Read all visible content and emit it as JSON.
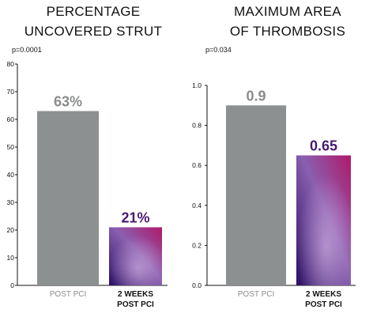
{
  "colors": {
    "gray_bar": "#8c9090",
    "gray_label": "#8a8c8c",
    "purple_label": "#4a1a6e",
    "gradient_dark": "#2a0f62",
    "gradient_mid": "#8a5fb0",
    "gradient_pink": "#b01a6a",
    "axis": "#111111"
  },
  "chart_data": [
    {
      "type": "bar",
      "title_lines": [
        "PERCENTAGE",
        "UNCOVERED STRUT"
      ],
      "p_value": "p=0.0001",
      "categories": [
        [
          "POST PCI"
        ],
        [
          "2 WEEKS",
          "POST PCI"
        ]
      ],
      "values": [
        63,
        21
      ],
      "value_labels": [
        "63%",
        "21%"
      ],
      "ylim": [
        0,
        80
      ],
      "yticks": [
        0,
        10,
        20,
        30,
        40,
        50,
        60,
        70,
        80
      ],
      "ytick_labels": [
        "0",
        "10",
        "20",
        "30",
        "40",
        "50",
        "60",
        "70",
        "80"
      ],
      "grid": false
    },
    {
      "type": "bar",
      "title_lines": [
        "MAXIMUM AREA",
        "OF THROMBOSIS"
      ],
      "p_value": "p=0.034",
      "categories": [
        [
          "POST PCI"
        ],
        [
          "2 WEEKS",
          "POST PCI"
        ]
      ],
      "values": [
        0.9,
        0.65
      ],
      "value_labels": [
        "0.9",
        "0.65"
      ],
      "ylim": [
        0,
        1.0
      ],
      "yticks": [
        0,
        0.2,
        0.4,
        0.6,
        0.8,
        1.0
      ],
      "ytick_labels": [
        "0.0",
        "0.2",
        "0.4",
        "0.6",
        "0.8",
        "1.0"
      ],
      "grid": false
    }
  ]
}
